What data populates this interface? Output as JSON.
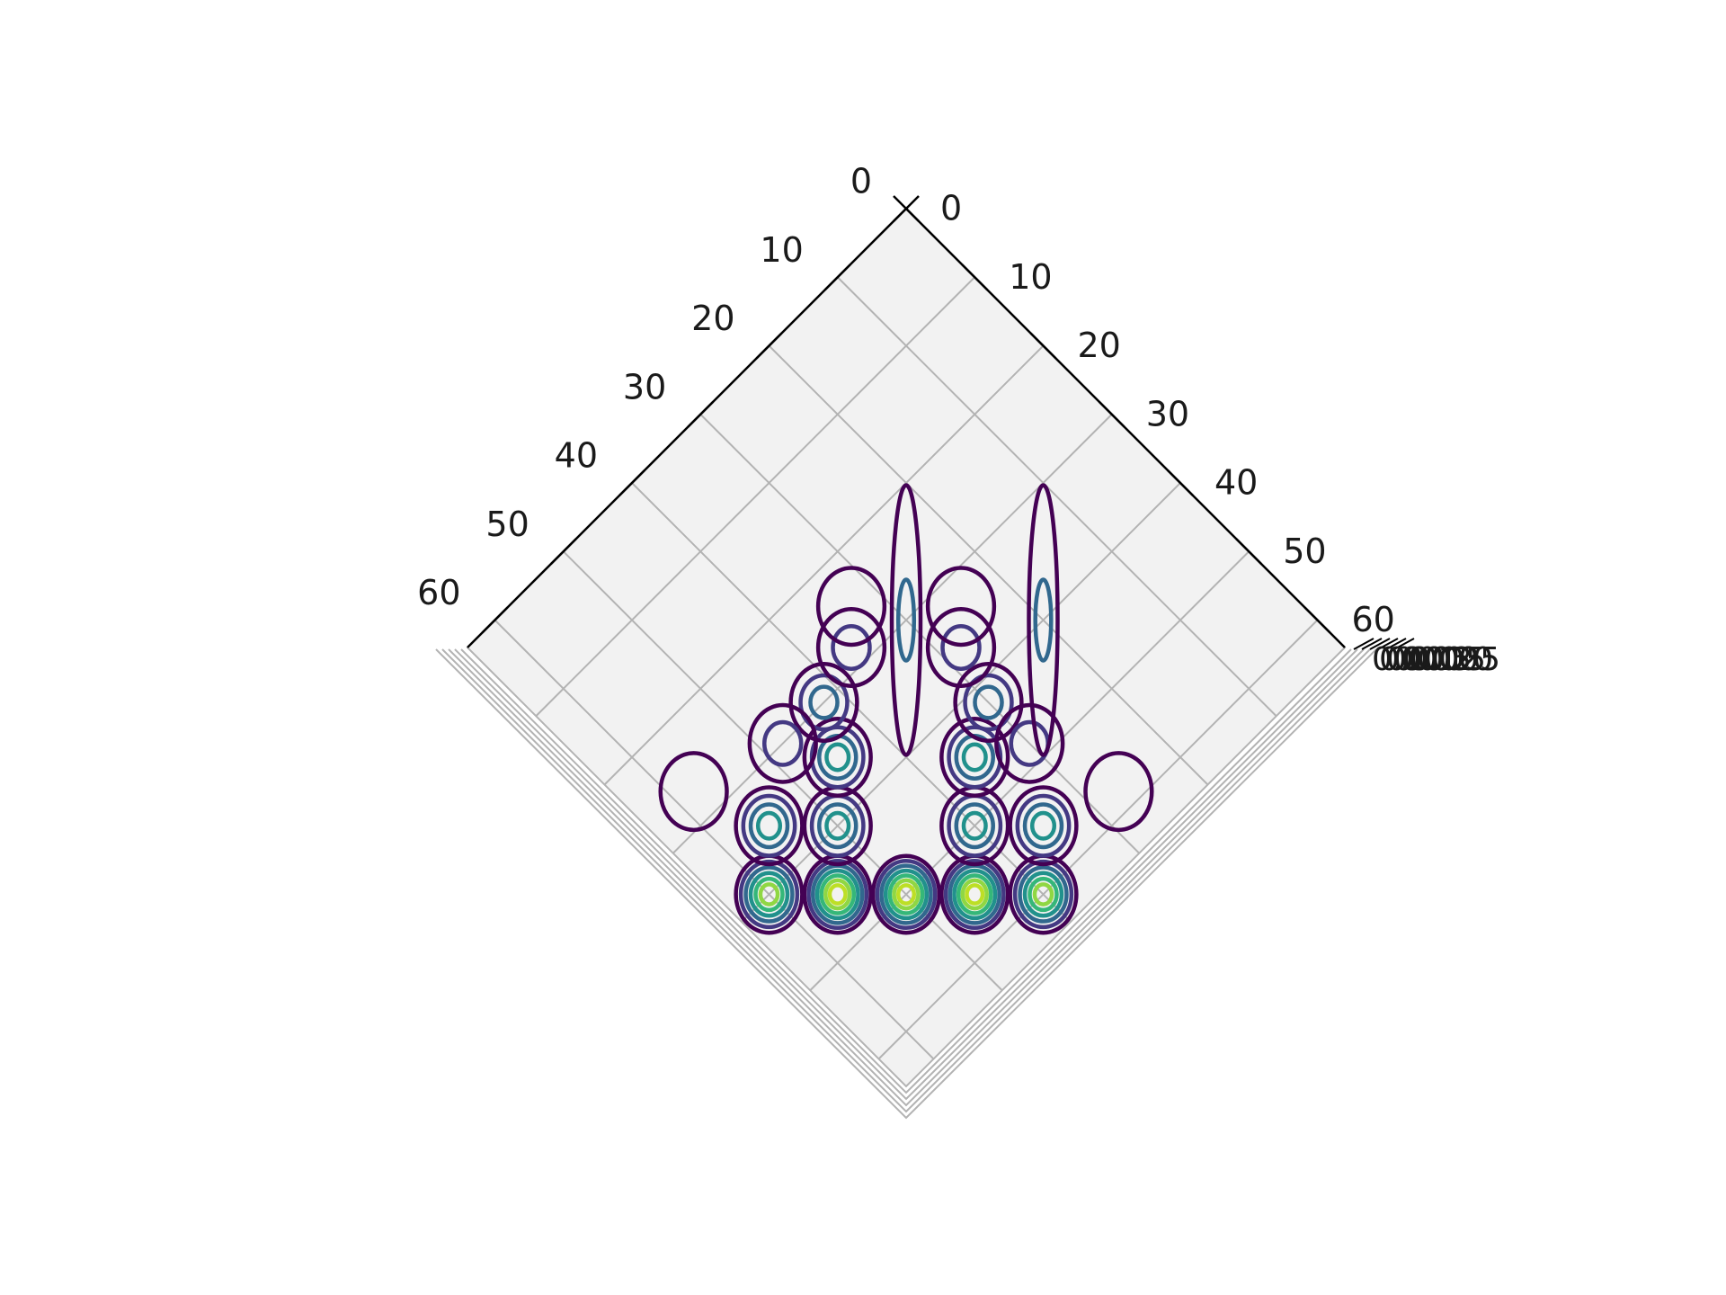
{
  "chart_data": {
    "type": "contour",
    "title": "",
    "xlabel": "",
    "ylabel": "",
    "zlabel": "",
    "projection": "3d",
    "view": "top-down, rotated 45 degrees",
    "x_ticks": [
      0,
      10,
      20,
      30,
      40,
      50,
      60
    ],
    "y_ticks": [
      0,
      10,
      20,
      30,
      40,
      50,
      60
    ],
    "z_ticks": [
      "0.000",
      "0.005",
      "0.010",
      "0.015",
      "0.020",
      "0.025"
    ],
    "xlim": [
      0,
      64
    ],
    "ylim": [
      0,
      64
    ],
    "grid": true,
    "colormap": "viridis",
    "colors": {
      "pane": "#f2f2f2",
      "grid": "#b3b3b3",
      "axis": "#000000",
      "level_low": "#440154",
      "level_mid": "#21918c",
      "level_high": "#bddf26"
    },
    "contour_levels": 7,
    "peaks": [
      {
        "x": 50,
        "y": 50,
        "amplitude": 0.025
      },
      {
        "x": 55,
        "y": 45,
        "amplitude": 0.024
      },
      {
        "x": 45,
        "y": 55,
        "amplitude": 0.024
      },
      {
        "x": 60,
        "y": 40,
        "amplitude": 0.022
      },
      {
        "x": 40,
        "y": 60,
        "amplitude": 0.022
      },
      {
        "x": 50,
        "y": 40,
        "amplitude": 0.016
      },
      {
        "x": 40,
        "y": 50,
        "amplitude": 0.016
      },
      {
        "x": 45,
        "y": 35,
        "amplitude": 0.013
      },
      {
        "x": 35,
        "y": 45,
        "amplitude": 0.013
      },
      {
        "x": 55,
        "y": 35,
        "amplitude": 0.015
      },
      {
        "x": 35,
        "y": 55,
        "amplitude": 0.015
      },
      {
        "x": 42,
        "y": 30,
        "amplitude": 0.009
      },
      {
        "x": 30,
        "y": 42,
        "amplitude": 0.009
      },
      {
        "x": 48,
        "y": 30,
        "amplitude": 0.008
      },
      {
        "x": 30,
        "y": 48,
        "amplitude": 0.008
      },
      {
        "x": 36,
        "y": 28,
        "amplitude": 0.007
      },
      {
        "x": 28,
        "y": 36,
        "amplitude": 0.007
      },
      {
        "x": 33,
        "y": 25,
        "amplitude": 0.004
      },
      {
        "x": 25,
        "y": 33,
        "amplitude": 0.004
      },
      {
        "x": 58,
        "y": 27,
        "amplitude": 0.003
      },
      {
        "x": 27,
        "y": 58,
        "amplitude": 0.003
      }
    ]
  }
}
